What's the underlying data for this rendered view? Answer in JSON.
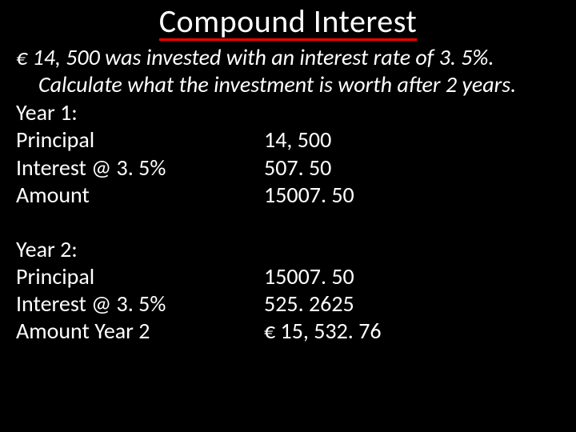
{
  "colors": {
    "background": "#000000",
    "text": "#ffffff",
    "underline": "#ff0000"
  },
  "typography": {
    "title_fontsize": 40,
    "body_fontsize": 28,
    "font_family": "Calibri"
  },
  "title": "Compound Interest",
  "problem": {
    "line1": "€ 14, 500 was invested with an interest rate of 3. 5%.",
    "line2": "Calculate what the investment is worth after 2 years."
  },
  "year1": {
    "heading": "Year 1:",
    "rows": [
      {
        "label": "Principal",
        "value": "14, 500"
      },
      {
        "label": "Interest @ 3. 5%",
        "value": " 507. 50"
      },
      {
        "label": "Amount",
        "value": "15007. 50"
      }
    ]
  },
  "year2": {
    "heading": "Year 2:",
    "rows": [
      {
        "label": "Principal",
        "value": "15007. 50"
      },
      {
        "label": "Interest @ 3. 5%",
        "value": " 525. 2625"
      },
      {
        "label": "Amount Year 2",
        "value": "€ 15, 532. 76"
      }
    ]
  }
}
